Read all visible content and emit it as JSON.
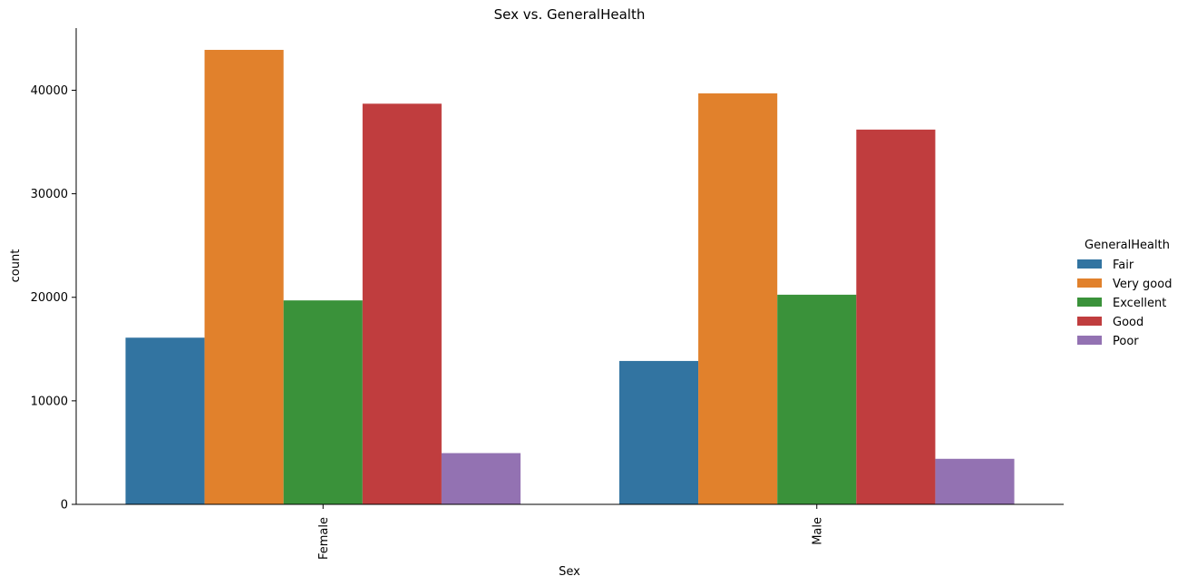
{
  "chart_data": {
    "type": "bar",
    "title": "Sex vs. GeneralHealth",
    "xlabel": "Sex",
    "ylabel": "count",
    "categories": [
      "Female",
      "Male"
    ],
    "series": [
      {
        "name": "Fair",
        "color": "#3274a1",
        "values": [
          16100,
          13850
        ]
      },
      {
        "name": "Very good",
        "color": "#e1812c",
        "values": [
          43900,
          39700
        ]
      },
      {
        "name": "Excellent",
        "color": "#3a923a",
        "values": [
          19700,
          20250
        ]
      },
      {
        "name": "Good",
        "color": "#c03d3e",
        "values": [
          38700,
          36200
        ]
      },
      {
        "name": "Poor",
        "color": "#9372b2",
        "values": [
          4950,
          4400
        ]
      }
    ],
    "ylim": [
      0,
      46000
    ],
    "yticks": [
      0,
      10000,
      20000,
      30000,
      40000
    ],
    "ytick_labels": [
      "0",
      "10000",
      "20000",
      "30000",
      "40000"
    ],
    "legend": {
      "title": "GeneralHealth",
      "placement": "right"
    },
    "grid": false
  }
}
